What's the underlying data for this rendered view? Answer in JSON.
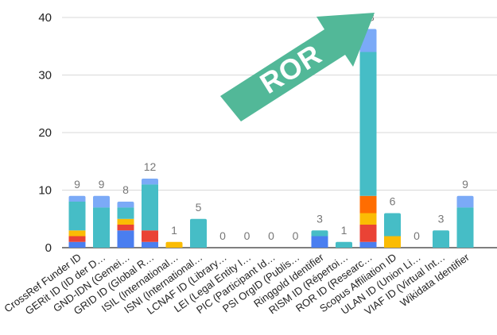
{
  "chart_data": {
    "type": "bar",
    "stacked": true,
    "categories": [
      "CrossRef Funder ID",
      "GERit ID (ID der D…",
      "GND-IDN (Gemei…",
      "GRID ID (Global R…",
      "ISIL (International…",
      "ISNI (International…",
      "LCNAF ID (Library…",
      "LEI (Legal Entity I…",
      "PIC (Participant Id…",
      "PSI OrgID (Publis…",
      "Ringgold Identifier",
      "RISM ID (Répertoi…",
      "ROR ID (Researc…",
      "Scopus Affiliation ID",
      "ULAN ID (Union Li…",
      "VIAF ID (Virtual Int…",
      "Wikidata Identifier"
    ],
    "series": [
      {
        "color": "#4a7ef0",
        "values": [
          1,
          0,
          3,
          1,
          0,
          0,
          0,
          0,
          0,
          0,
          2,
          0,
          1,
          0,
          0,
          0,
          0
        ]
      },
      {
        "color": "#ea4335",
        "values": [
          1,
          0,
          1,
          2,
          0,
          0,
          0,
          0,
          0,
          0,
          0,
          0,
          3,
          0,
          0,
          0,
          0
        ]
      },
      {
        "color": "#fbbc04",
        "values": [
          1,
          0,
          1,
          0,
          1,
          0,
          0,
          0,
          0,
          0,
          0,
          0,
          2,
          2,
          0,
          0,
          0
        ]
      },
      {
        "color": "#ff6d01",
        "values": [
          0,
          0,
          0,
          0,
          0,
          0,
          0,
          0,
          0,
          0,
          0,
          0,
          3,
          0,
          0,
          0,
          0
        ]
      },
      {
        "color": "#46bdc6",
        "values": [
          5,
          7,
          2,
          8,
          0,
          5,
          0,
          0,
          0,
          0,
          1,
          1,
          25,
          4,
          0,
          3,
          7
        ]
      },
      {
        "color": "#7baaf7",
        "values": [
          1,
          2,
          1,
          1,
          0,
          0,
          0,
          0,
          0,
          0,
          0,
          0,
          4,
          0,
          0,
          0,
          2
        ]
      }
    ],
    "totals": [
      9,
      9,
      8,
      12,
      1,
      5,
      0,
      0,
      0,
      0,
      3,
      1,
      38,
      6,
      0,
      3,
      9
    ],
    "ylim": [
      0,
      40
    ],
    "yticks": [
      0,
      10,
      20,
      30,
      40
    ],
    "grid": true,
    "annotation": {
      "text": "ROR",
      "color": "#52b898"
    }
  }
}
